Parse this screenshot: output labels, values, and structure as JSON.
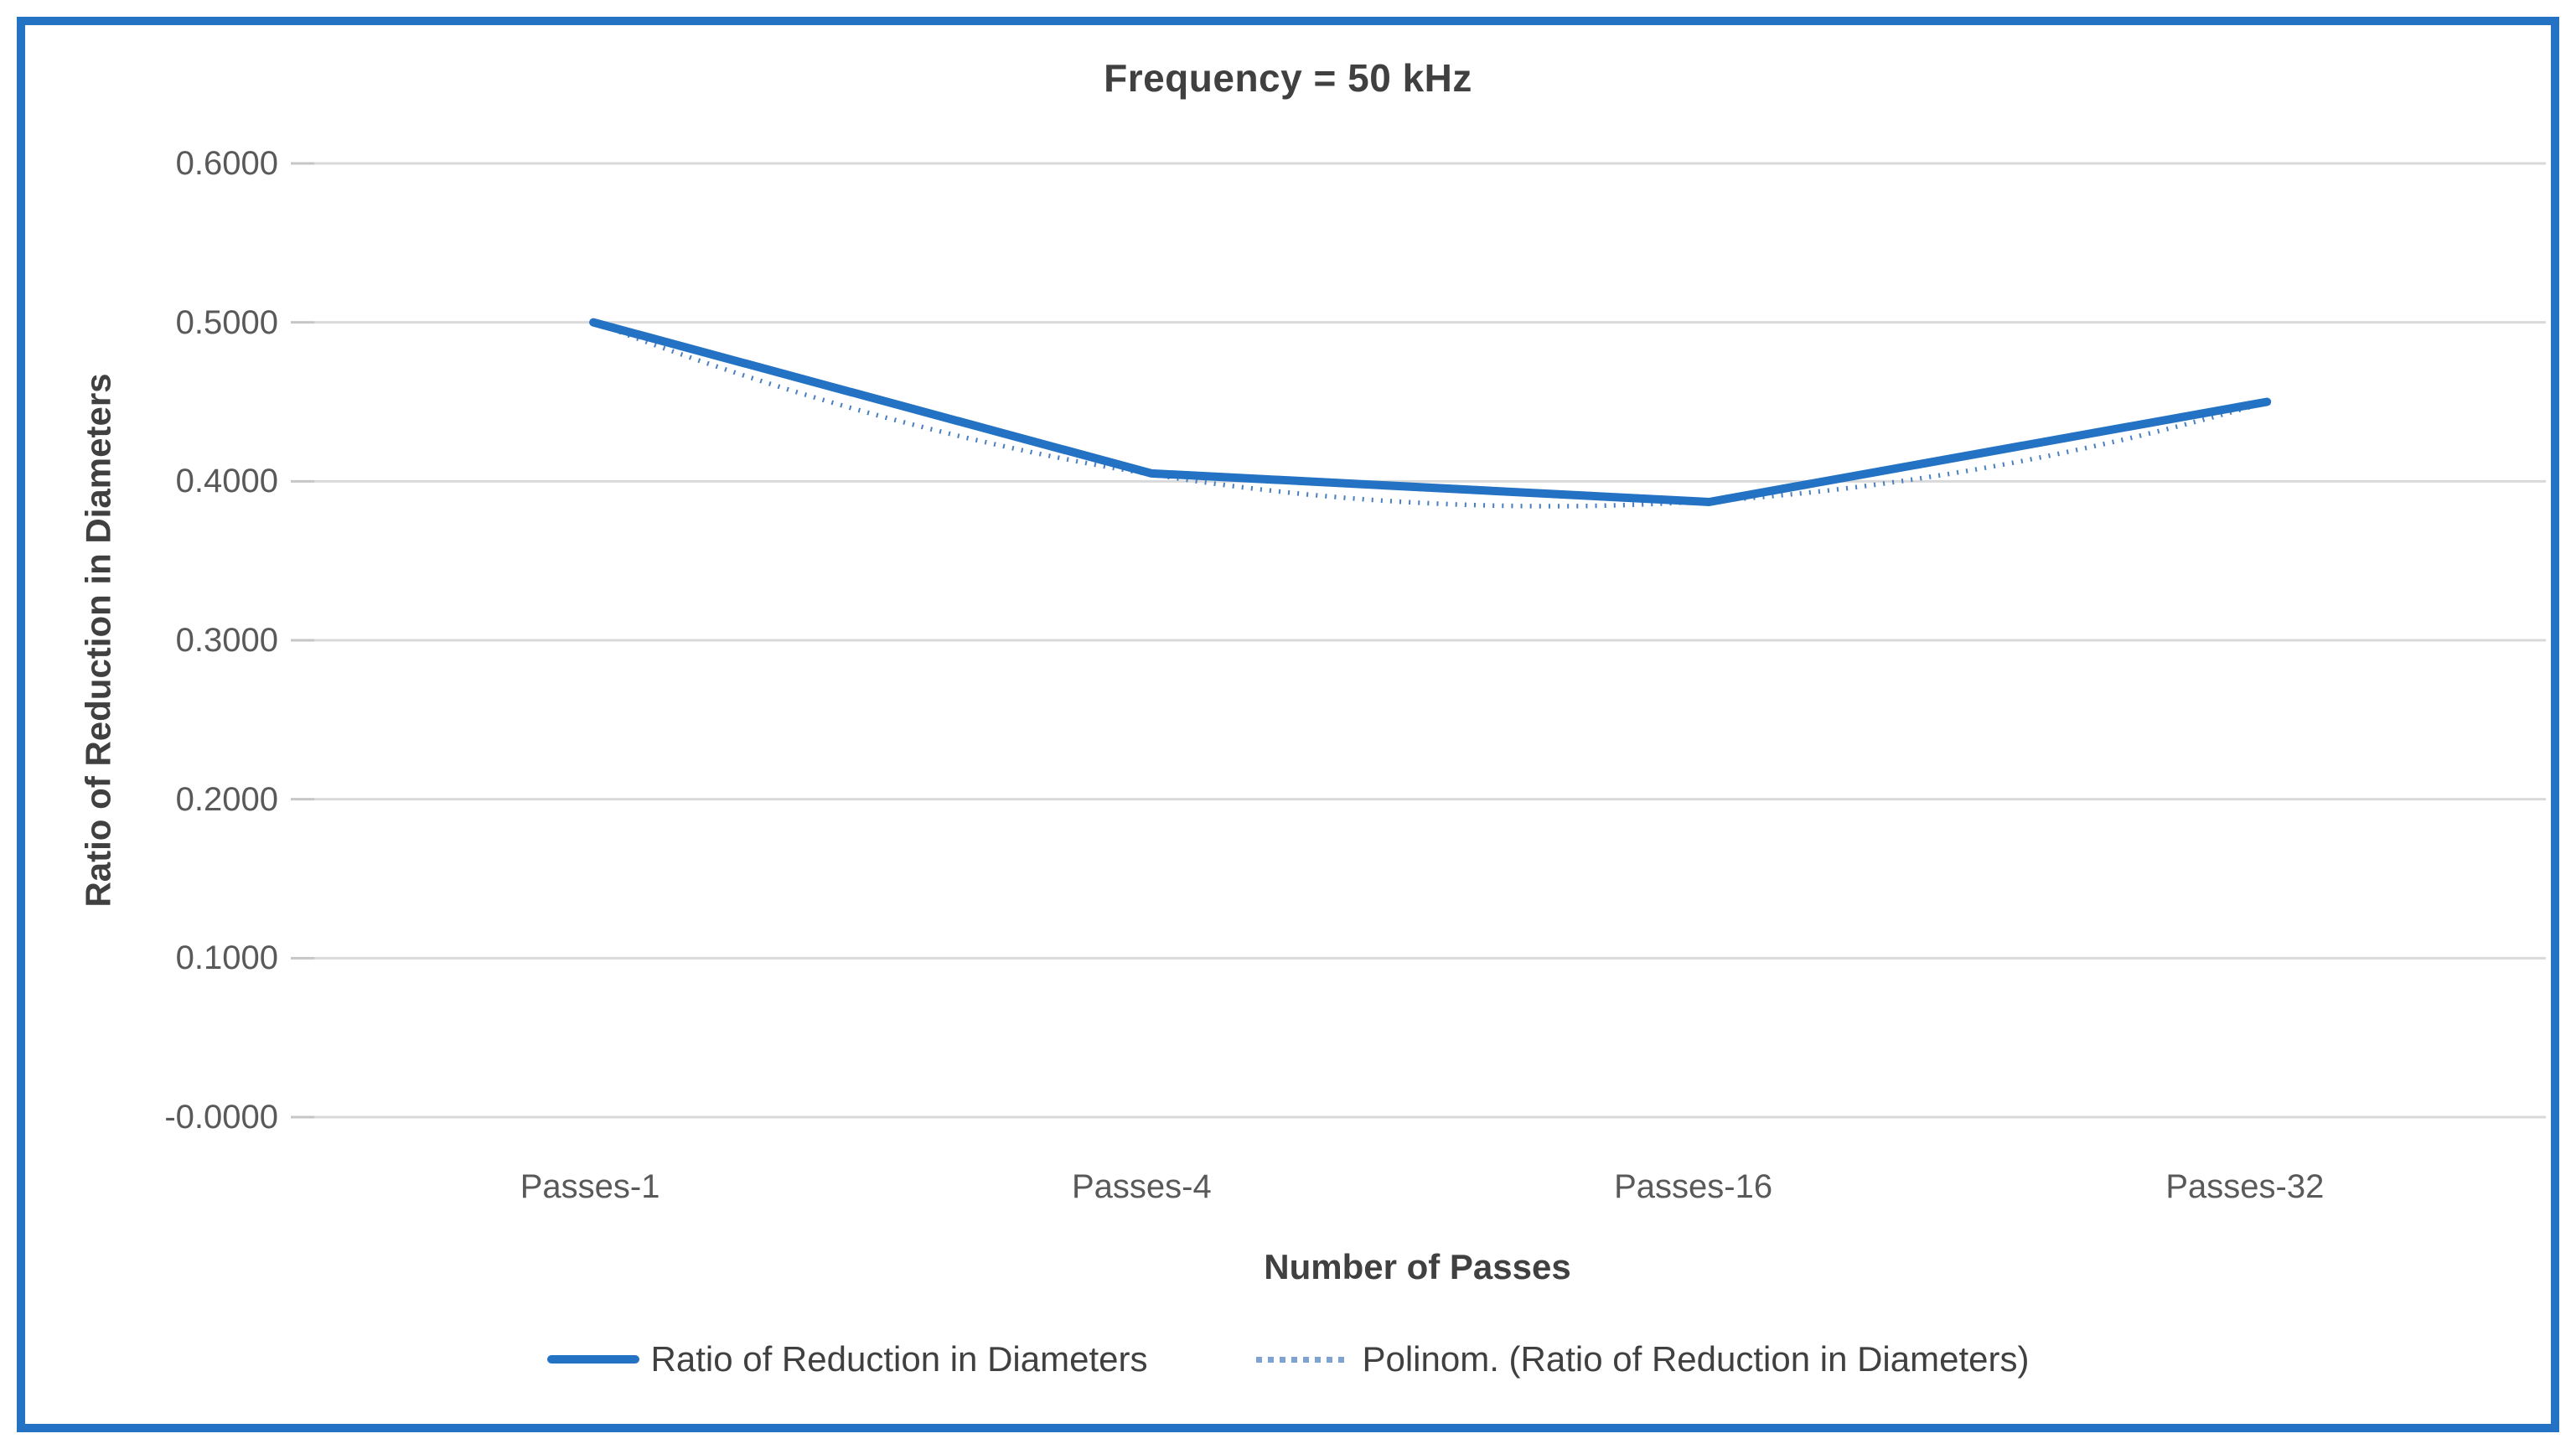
{
  "chart": {
    "title": "Frequency = 50 kHz",
    "y_axis_title": "Ratio of Reduction in Diameters",
    "x_axis_title": "Number of Passes",
    "legend": {
      "items": [
        {
          "label": "Ratio of Reduction in Diameters",
          "style": "solid"
        },
        {
          "label": "Polinom. (Ratio of Reduction in Diameters)",
          "style": "dotted"
        }
      ]
    },
    "colors": {
      "series": "#2472C4",
      "trendline": "#4A80C2",
      "legend_trend_sample": "#7FA3D1",
      "gridline": "#D9D9D9",
      "tick_mark": "#C6C6C6",
      "frame": "#2472C4",
      "title_text": "#404040",
      "axis_text": "#595959"
    }
  },
  "chart_data": {
    "type": "line",
    "title": "Frequency = 50 kHz",
    "xlabel": "Number of Passes",
    "ylabel": "Ratio of Reduction in Diameters",
    "categories": [
      "Passes-1",
      "Passes-4",
      "Passes-16",
      "Passes-32"
    ],
    "series": [
      {
        "name": "Ratio of Reduction in Diameters",
        "type": "line",
        "line_style": "solid",
        "values": [
          0.5,
          0.405,
          0.387,
          0.45
        ]
      },
      {
        "name": "Polinom. (Ratio of Reduction in Diameters)",
        "type": "trendline",
        "trend": "polynomial",
        "order": 2,
        "of_series": "Ratio of Reduction in Diameters",
        "line_style": "dotted"
      }
    ],
    "ylim": [
      0,
      0.6
    ],
    "ytick_step": 0.1,
    "ytick_decimals": 4,
    "grid": "horizontal",
    "legend_position": "bottom"
  }
}
